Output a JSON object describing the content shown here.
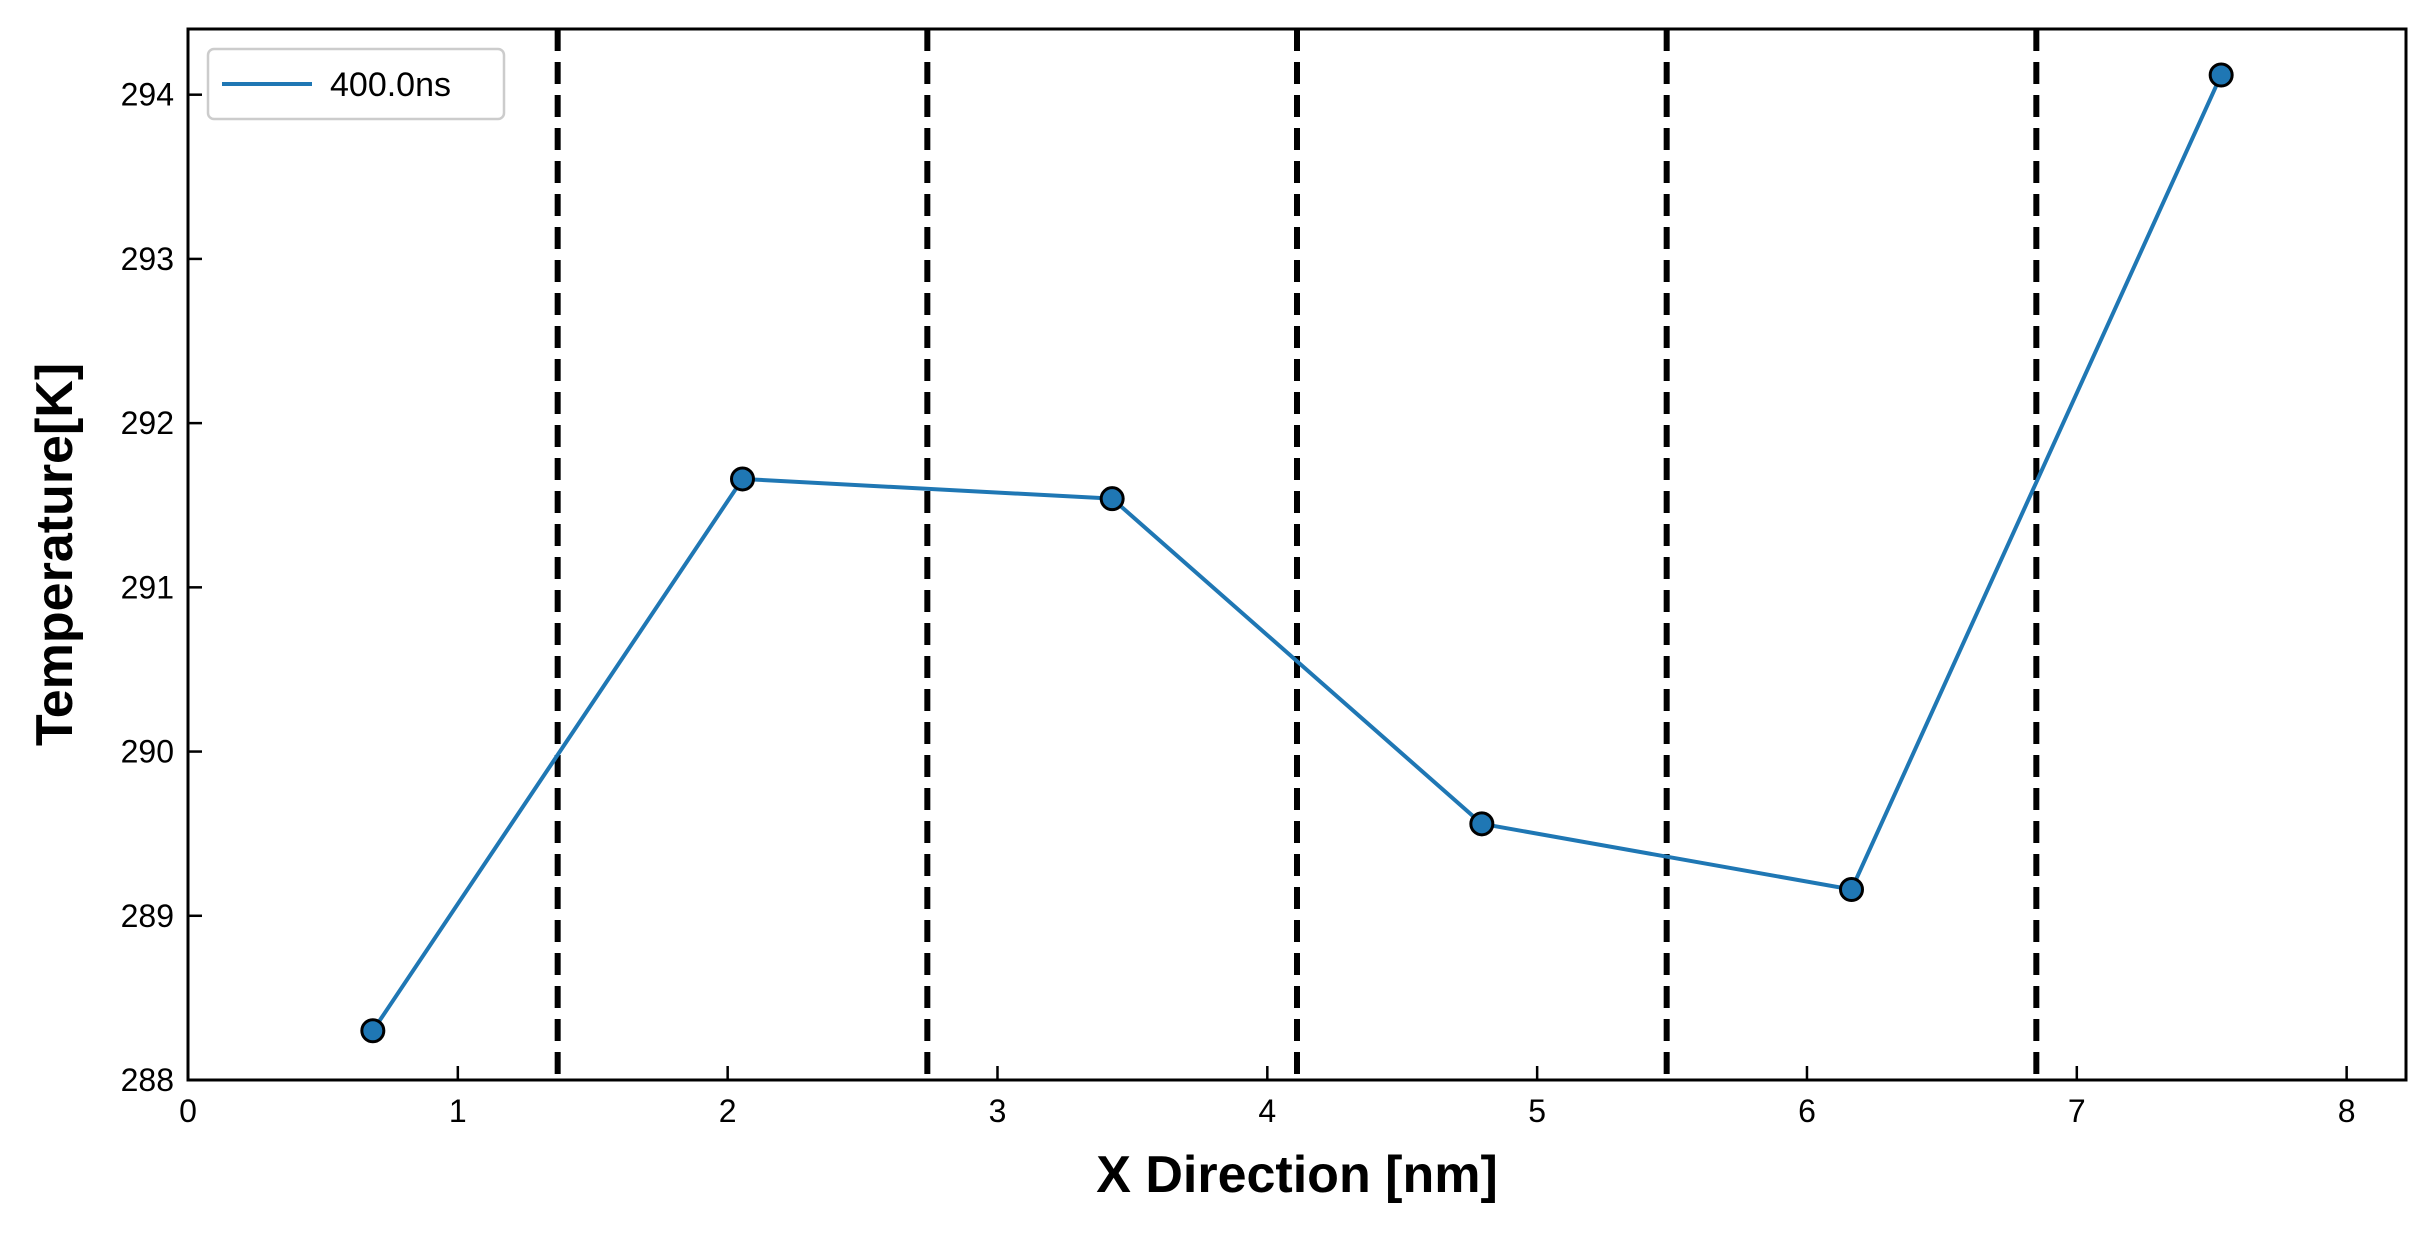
{
  "chart_data": {
    "type": "line",
    "title": "",
    "xlabel": "X Direction [nm]",
    "ylabel": "Temperature[K]",
    "xlim": [
      0,
      8.22
    ],
    "ylim": [
      288,
      294.4
    ],
    "xticks": [
      0,
      1,
      2,
      3,
      4,
      5,
      6,
      7,
      8
    ],
    "xtick_labels": [
      "0",
      "1",
      "2",
      "3",
      "4",
      "5",
      "6",
      "7",
      "8"
    ],
    "yticks": [
      288,
      289,
      290,
      291,
      292,
      293,
      294
    ],
    "ytick_labels": [
      "288",
      "289",
      "290",
      "291",
      "292",
      "293",
      "294"
    ],
    "grid": false,
    "legend_position": "top-left",
    "series": [
      {
        "name": "400.0ns",
        "color": "#1f77b4",
        "marker": "circle",
        "x": [
          0.685,
          2.055,
          3.425,
          4.795,
          6.165,
          7.535
        ],
        "y": [
          288.3,
          291.66,
          291.54,
          289.56,
          289.16,
          294.12
        ]
      }
    ],
    "reference_lines": {
      "orientation": "vertical",
      "style": "dashed",
      "color": "#000000",
      "x": [
        1.37,
        2.74,
        4.11,
        5.48,
        6.85
      ]
    }
  }
}
